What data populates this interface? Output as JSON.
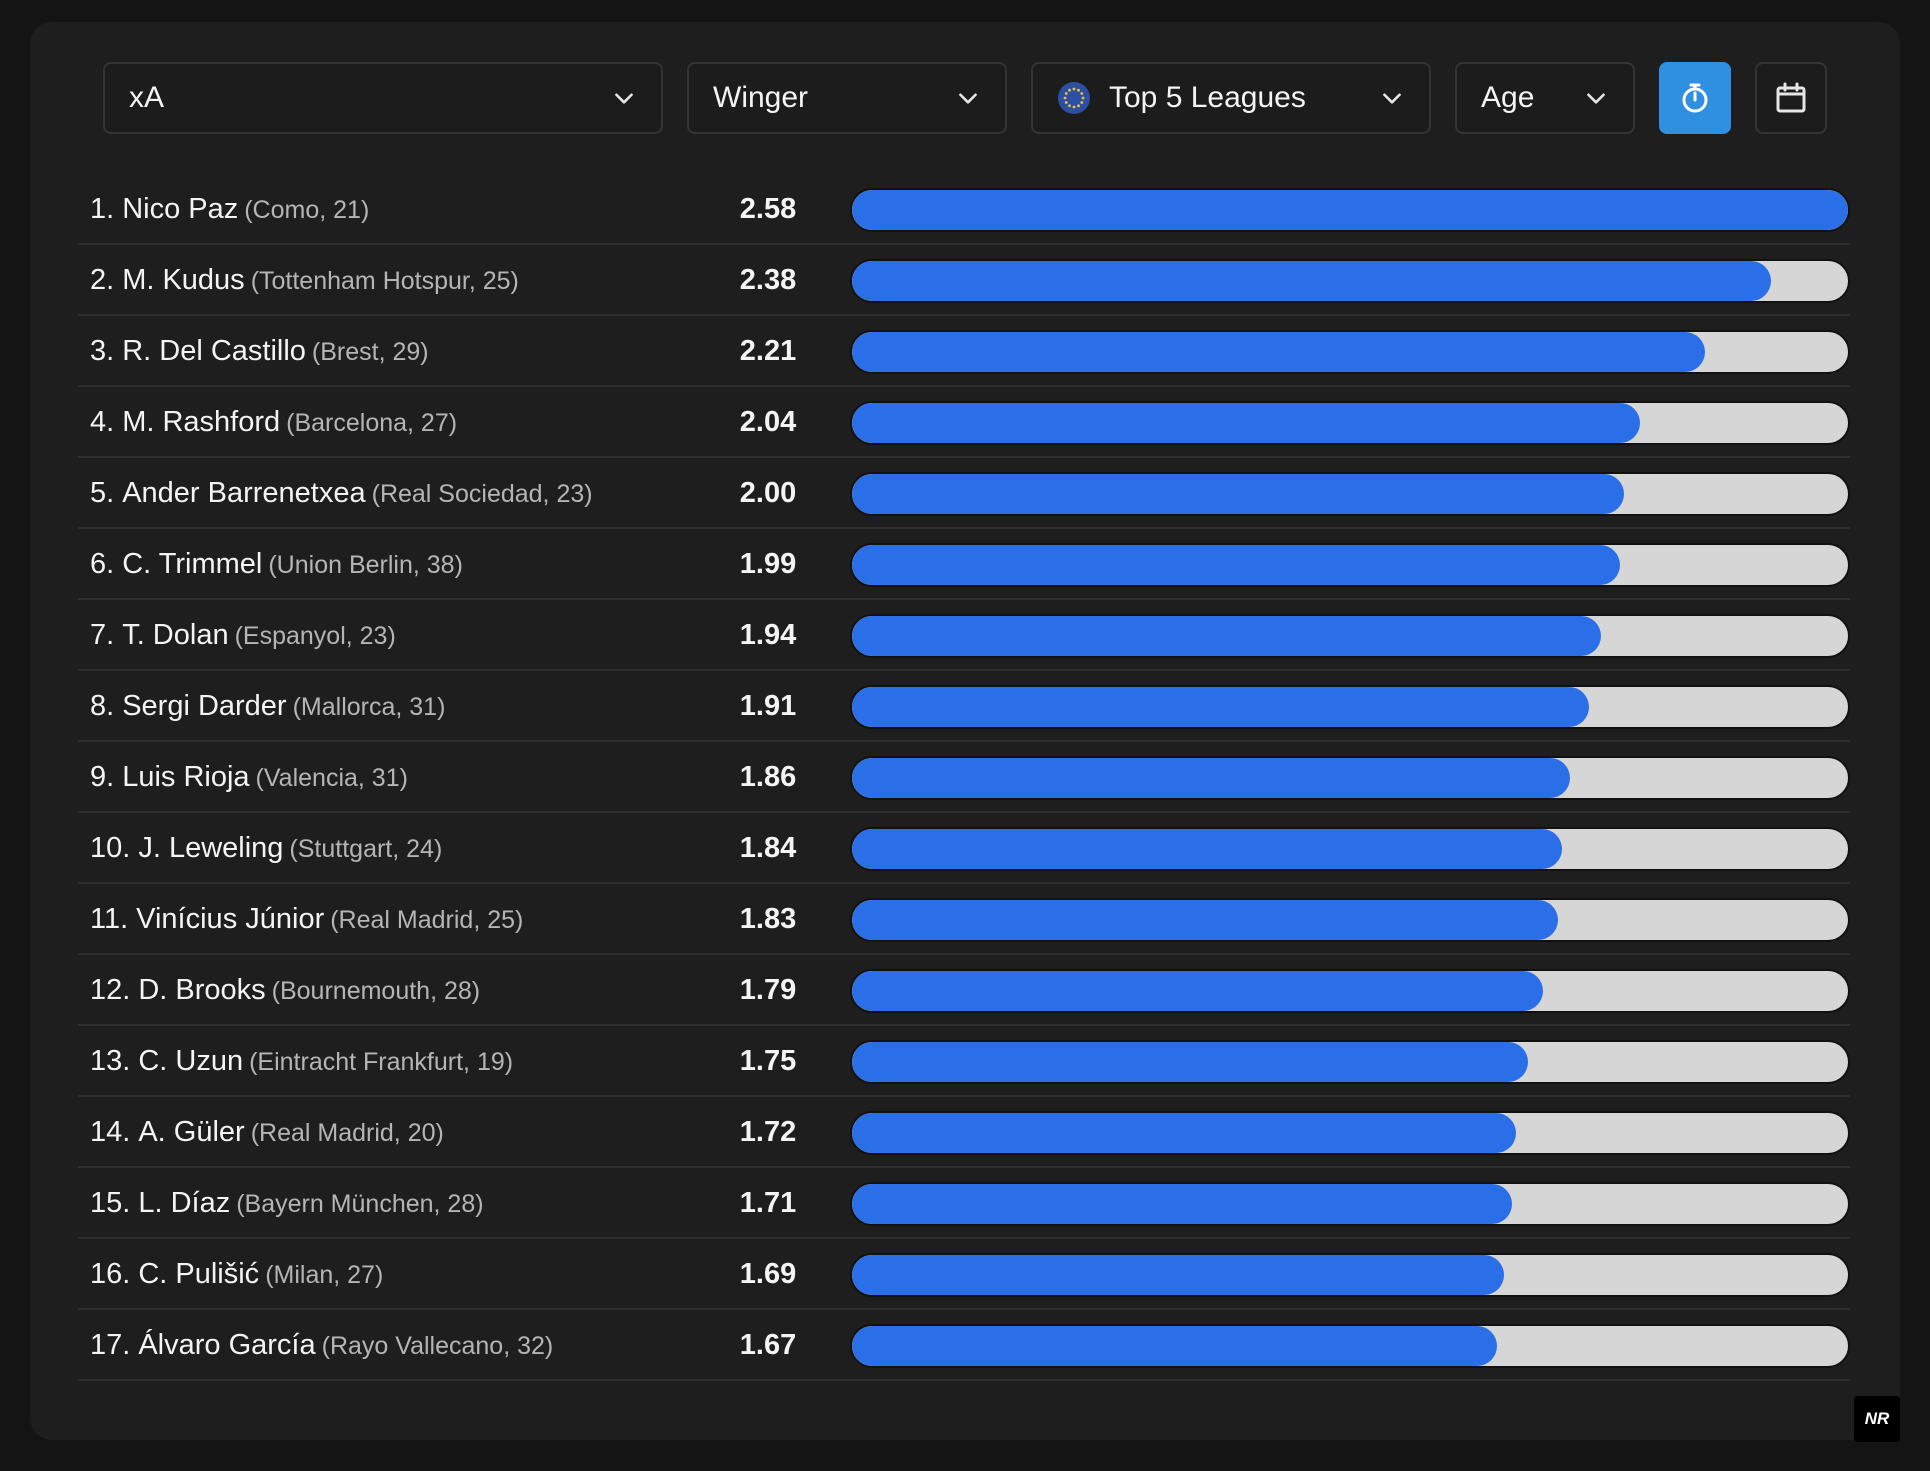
{
  "toolbar": {
    "metric": {
      "label": "xA"
    },
    "position": {
      "label": "Winger"
    },
    "league": {
      "label": "Top 5 Leagues"
    },
    "sort": {
      "label": "Age"
    }
  },
  "colors": {
    "accent": "#2f8fe0",
    "bar_fill": "#2a6ee8",
    "bar_track": "#d6d6d6",
    "panel_bg": "#1e1e1e"
  },
  "chart_data": {
    "type": "bar",
    "orientation": "horizontal",
    "xlim": [
      0,
      2.58
    ],
    "rows": [
      {
        "rank": "1.",
        "name": "Nico Paz",
        "meta": "(Como, 21)",
        "value": "2.58",
        "v": 2.58
      },
      {
        "rank": "2.",
        "name": "M. Kudus",
        "meta": "(Tottenham Hotspur, 25)",
        "value": "2.38",
        "v": 2.38
      },
      {
        "rank": "3.",
        "name": "R. Del Castillo",
        "meta": "(Brest, 29)",
        "value": "2.21",
        "v": 2.21
      },
      {
        "rank": "4.",
        "name": "M. Rashford",
        "meta": "(Barcelona, 27)",
        "value": "2.04",
        "v": 2.04
      },
      {
        "rank": "5.",
        "name": "Ander Barrenetxea",
        "meta": "(Real Sociedad, 23)",
        "value": "2.00",
        "v": 2.0
      },
      {
        "rank": "6.",
        "name": "C. Trimmel",
        "meta": "(Union Berlin, 38)",
        "value": "1.99",
        "v": 1.99
      },
      {
        "rank": "7.",
        "name": "T. Dolan",
        "meta": "(Espanyol, 23)",
        "value": "1.94",
        "v": 1.94
      },
      {
        "rank": "8.",
        "name": "Sergi Darder",
        "meta": "(Mallorca, 31)",
        "value": "1.91",
        "v": 1.91
      },
      {
        "rank": "9.",
        "name": "Luis Rioja",
        "meta": "(Valencia, 31)",
        "value": "1.86",
        "v": 1.86
      },
      {
        "rank": "10.",
        "name": "J. Leweling",
        "meta": "(Stuttgart, 24)",
        "value": "1.84",
        "v": 1.84
      },
      {
        "rank": "11.",
        "name": "Vinícius Júnior",
        "meta": "(Real Madrid, 25)",
        "value": "1.83",
        "v": 1.83
      },
      {
        "rank": "12.",
        "name": "D. Brooks",
        "meta": "(Bournemouth, 28)",
        "value": "1.79",
        "v": 1.79
      },
      {
        "rank": "13.",
        "name": "C. Uzun",
        "meta": "(Eintracht Frankfurt, 19)",
        "value": "1.75",
        "v": 1.75
      },
      {
        "rank": "14.",
        "name": "A. Güler",
        "meta": "(Real Madrid, 20)",
        "value": "1.72",
        "v": 1.72
      },
      {
        "rank": "15.",
        "name": "L. Díaz",
        "meta": "(Bayern München, 28)",
        "value": "1.71",
        "v": 1.71
      },
      {
        "rank": "16.",
        "name": "C. Pulišić",
        "meta": "(Milan, 27)",
        "value": "1.69",
        "v": 1.69
      },
      {
        "rank": "17.",
        "name": "Álvaro García",
        "meta": "(Rayo Vallecano, 32)",
        "value": "1.67",
        "v": 1.67
      }
    ]
  },
  "watermark": {
    "text": "NR"
  }
}
